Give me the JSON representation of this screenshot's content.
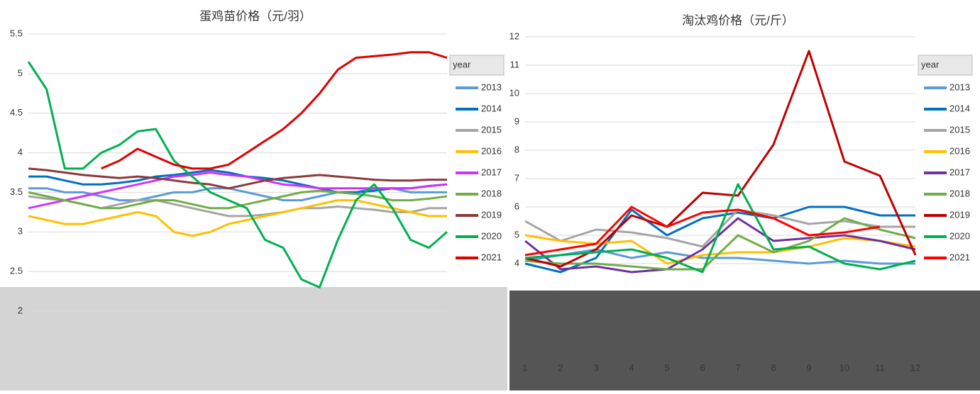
{
  "chart_data": [
    {
      "type": "line",
      "title": "蛋鸡苗价格（元/羽）",
      "legend_title": "year",
      "categories": [
        null,
        null,
        null,
        null,
        null,
        null,
        null,
        null,
        null,
        null,
        null,
        null,
        null,
        null,
        null,
        null,
        null,
        null,
        null,
        null,
        null,
        null,
        null,
        null
      ],
      "ylim": [
        2,
        5.5
      ],
      "yticks": [
        2,
        2.5,
        3,
        3.5,
        4,
        4.5,
        5,
        5.5
      ],
      "grid": true,
      "series": [
        {
          "name": "2013",
          "color": "#5b9bd5",
          "values": [
            3.55,
            3.55,
            3.5,
            3.5,
            3.45,
            3.4,
            3.4,
            3.45,
            3.5,
            3.5,
            3.55,
            3.55,
            3.5,
            3.45,
            3.4,
            3.4,
            3.45,
            3.5,
            3.5,
            3.55,
            3.55,
            3.5,
            3.5,
            3.5
          ]
        },
        {
          "name": "2014",
          "color": "#0070c0",
          "values": [
            3.7,
            3.7,
            3.65,
            3.6,
            3.6,
            3.62,
            3.65,
            3.7,
            3.72,
            3.75,
            3.78,
            3.75,
            3.7,
            3.68,
            3.65,
            3.6,
            3.55,
            3.5,
            3.5,
            3.52,
            3.55,
            3.55,
            3.58,
            3.6
          ]
        },
        {
          "name": "2015",
          "color": "#a5a5a5",
          "values": [
            3.45,
            3.42,
            3.4,
            3.35,
            3.3,
            3.35,
            3.4,
            3.4,
            3.35,
            3.3,
            3.25,
            3.2,
            3.2,
            3.22,
            3.25,
            3.3,
            3.3,
            3.32,
            3.3,
            3.28,
            3.25,
            3.25,
            3.3,
            3.3
          ]
        },
        {
          "name": "2016",
          "color": "#ffc000",
          "values": [
            3.2,
            3.15,
            3.1,
            3.1,
            3.15,
            3.2,
            3.25,
            3.2,
            3.0,
            2.95,
            3.0,
            3.1,
            3.15,
            3.2,
            3.25,
            3.3,
            3.35,
            3.4,
            3.4,
            3.35,
            3.3,
            3.25,
            3.2,
            3.2
          ]
        },
        {
          "name": "2017",
          "color": "#cc33ff",
          "values": [
            3.3,
            3.35,
            3.4,
            3.45,
            3.5,
            3.55,
            3.6,
            3.65,
            3.7,
            3.72,
            3.75,
            3.72,
            3.7,
            3.65,
            3.6,
            3.58,
            3.55,
            3.55,
            3.55,
            3.55,
            3.55,
            3.55,
            3.58,
            3.6
          ]
        },
        {
          "name": "2018",
          "color": "#70ad47",
          "values": [
            3.5,
            3.45,
            3.4,
            3.35,
            3.3,
            3.3,
            3.35,
            3.4,
            3.4,
            3.35,
            3.3,
            3.3,
            3.35,
            3.4,
            3.45,
            3.5,
            3.52,
            3.5,
            3.48,
            3.45,
            3.4,
            3.4,
            3.42,
            3.45
          ]
        },
        {
          "name": "2019",
          "color": "#8c3a3a",
          "values": [
            3.8,
            3.78,
            3.75,
            3.72,
            3.7,
            3.68,
            3.7,
            3.68,
            3.65,
            3.62,
            3.6,
            3.55,
            3.6,
            3.65,
            3.68,
            3.7,
            3.72,
            3.7,
            3.68,
            3.66,
            3.65,
            3.65,
            3.66,
            3.66
          ]
        },
        {
          "name": "2020",
          "color": "#00b050",
          "values": [
            5.15,
            4.8,
            3.8,
            3.8,
            4.0,
            4.1,
            4.27,
            4.3,
            3.9,
            3.7,
            3.5,
            3.4,
            3.3,
            2.9,
            2.8,
            2.4,
            2.3,
            2.9,
            3.4,
            3.6,
            3.3,
            2.9,
            2.8,
            3.0
          ]
        },
        {
          "name": "2021",
          "color": "#e00000",
          "values": [
            null,
            null,
            null,
            null,
            3.8,
            3.9,
            4.05,
            3.95,
            3.85,
            3.8,
            3.8,
            3.85,
            4.0,
            4.15,
            4.3,
            4.5,
            4.75,
            5.05,
            5.2,
            5.22,
            5.24,
            5.27,
            5.27,
            5.2
          ]
        }
      ]
    },
    {
      "type": "line",
      "title": "淘汰鸡价格（元/斤）",
      "legend_title": "year",
      "categories": [
        "1",
        "2",
        "3",
        "4",
        "5",
        "6",
        "7",
        "8",
        "9",
        "10",
        "11",
        "12"
      ],
      "ylim": [
        3.5,
        12
      ],
      "yticks": [
        4,
        5,
        6,
        7,
        8,
        9,
        10,
        11,
        12
      ],
      "grid": true,
      "series": [
        {
          "name": "2013",
          "color": "#5b9bd5",
          "values": [
            4.1,
            4.3,
            4.5,
            4.2,
            4.4,
            4.2,
            4.2,
            4.1,
            4.0,
            4.1,
            4.0,
            4.0
          ]
        },
        {
          "name": "2014",
          "color": "#0070c0",
          "values": [
            4.0,
            3.7,
            4.2,
            5.9,
            5.0,
            5.6,
            5.8,
            5.6,
            6.0,
            6.0,
            5.7,
            5.7
          ]
        },
        {
          "name": "2015",
          "color": "#a5a5a5",
          "values": [
            5.5,
            4.8,
            5.2,
            5.1,
            4.9,
            4.6,
            5.9,
            5.7,
            5.4,
            5.5,
            5.3,
            5.3
          ]
        },
        {
          "name": "2016",
          "color": "#ffc000",
          "values": [
            5.0,
            4.8,
            4.7,
            4.8,
            4.0,
            4.3,
            4.4,
            4.4,
            4.6,
            4.9,
            4.8,
            4.6
          ]
        },
        {
          "name": "2017",
          "color": "#7030a0",
          "values": [
            4.8,
            3.8,
            3.9,
            3.7,
            3.8,
            4.5,
            5.6,
            4.8,
            4.9,
            5.0,
            4.8,
            4.5
          ]
        },
        {
          "name": "2018",
          "color": "#70ad47",
          "values": [
            4.1,
            4.0,
            4.0,
            3.9,
            3.8,
            3.8,
            5.0,
            4.4,
            4.8,
            5.6,
            5.2,
            4.9
          ]
        },
        {
          "name": "2019",
          "color": "#c00000",
          "values": [
            4.2,
            3.9,
            4.5,
            5.7,
            5.3,
            6.5,
            6.4,
            8.2,
            11.5,
            7.6,
            7.1,
            4.3
          ]
        },
        {
          "name": "2020",
          "color": "#00b050",
          "values": [
            4.2,
            4.3,
            4.4,
            4.5,
            4.2,
            3.7,
            6.8,
            4.5,
            4.6,
            4.0,
            3.8,
            4.1
          ]
        },
        {
          "name": "2021",
          "color": "#ff0000",
          "values": [
            4.3,
            4.5,
            4.7,
            6.0,
            5.3,
            5.8,
            5.9,
            5.6,
            5.0,
            5.1,
            5.3,
            null
          ]
        }
      ]
    }
  ]
}
